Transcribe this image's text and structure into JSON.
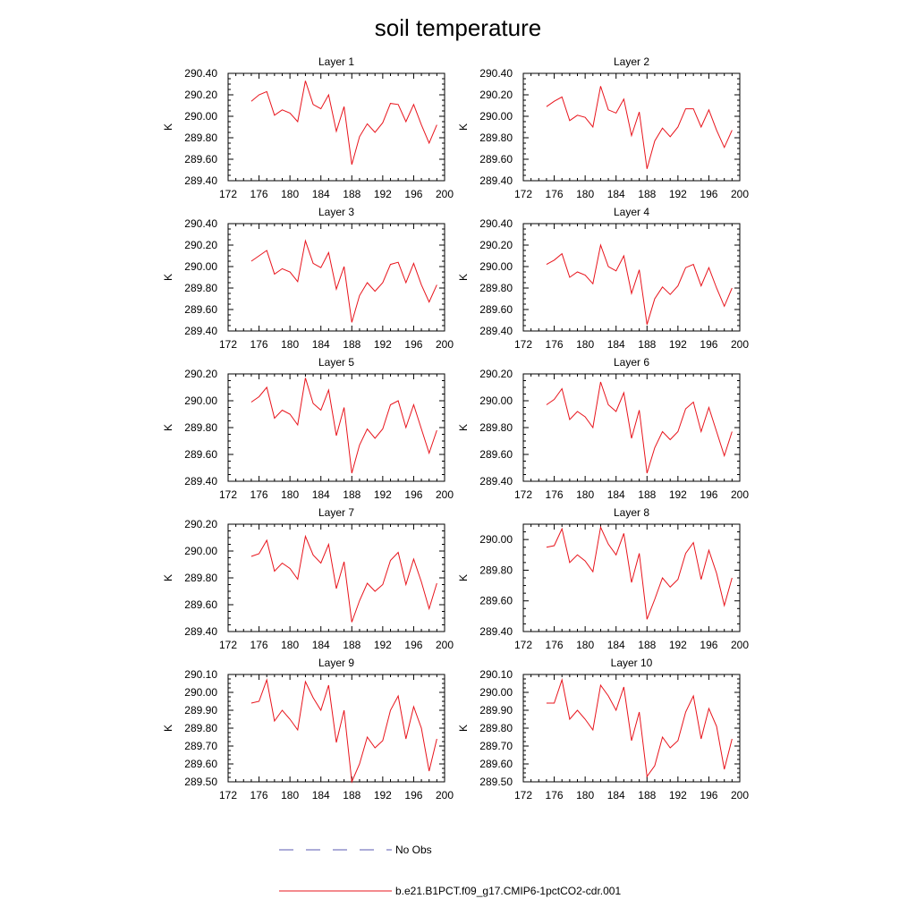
{
  "figure_title": "soil temperature",
  "chart_data": [
    {
      "type": "line",
      "title": "Layer 1",
      "ylabel": "K",
      "xlim": [
        172,
        200
      ],
      "xticks": [
        172,
        176,
        180,
        184,
        188,
        192,
        196,
        200
      ],
      "ylim": [
        289.4,
        290.4
      ],
      "yticks": [
        "289.40",
        "289.60",
        "289.80",
        "290.00",
        "290.20",
        "290.40"
      ],
      "series": [
        {
          "name": "b.e21.B1PCT.f09_g17.CMIP6-1pctCO2-cdr.001",
          "color": "#e8141c",
          "x": [
            175,
            176,
            177,
            178,
            179,
            180,
            181,
            182,
            183,
            184,
            185,
            186,
            187,
            188,
            189,
            190,
            191,
            192,
            193,
            194,
            195,
            196,
            197,
            198,
            199
          ],
          "values": [
            290.14,
            290.2,
            290.23,
            290.01,
            290.06,
            290.03,
            289.95,
            290.33,
            290.11,
            290.07,
            290.2,
            289.86,
            290.09,
            289.55,
            289.81,
            289.93,
            289.85,
            289.94,
            290.12,
            290.11,
            289.95,
            290.11,
            289.92,
            289.75,
            289.92
          ]
        }
      ]
    },
    {
      "type": "line",
      "title": "Layer 2",
      "ylabel": "K",
      "xlim": [
        172,
        200
      ],
      "xticks": [
        172,
        176,
        180,
        184,
        188,
        192,
        196,
        200
      ],
      "ylim": [
        289.4,
        290.4
      ],
      "yticks": [
        "289.40",
        "289.60",
        "289.80",
        "290.00",
        "290.20",
        "290.40"
      ],
      "series": [
        {
          "name": "b.e21.B1PCT.f09_g17.CMIP6-1pctCO2-cdr.001",
          "color": "#e8141c",
          "x": [
            175,
            176,
            177,
            178,
            179,
            180,
            181,
            182,
            183,
            184,
            185,
            186,
            187,
            188,
            189,
            190,
            191,
            192,
            193,
            194,
            195,
            196,
            197,
            198,
            199
          ],
          "values": [
            290.09,
            290.14,
            290.18,
            289.96,
            290.01,
            289.99,
            289.9,
            290.28,
            290.06,
            290.03,
            290.16,
            289.82,
            290.04,
            289.51,
            289.77,
            289.89,
            289.81,
            289.9,
            290.07,
            290.07,
            289.9,
            290.06,
            289.87,
            289.71,
            289.87
          ]
        }
      ]
    },
    {
      "type": "line",
      "title": "Layer 3",
      "ylabel": "K",
      "xlim": [
        172,
        200
      ],
      "xticks": [
        172,
        176,
        180,
        184,
        188,
        192,
        196,
        200
      ],
      "ylim": [
        289.4,
        290.4
      ],
      "yticks": [
        "289.40",
        "289.60",
        "289.80",
        "290.00",
        "290.20",
        "290.40"
      ],
      "series": [
        {
          "name": "b.e21.B1PCT.f09_g17.CMIP6-1pctCO2-cdr.001",
          "color": "#e8141c",
          "x": [
            175,
            176,
            177,
            178,
            179,
            180,
            181,
            182,
            183,
            184,
            185,
            186,
            187,
            188,
            189,
            190,
            191,
            192,
            193,
            194,
            195,
            196,
            197,
            198,
            199
          ],
          "values": [
            290.05,
            290.1,
            290.15,
            289.93,
            289.98,
            289.95,
            289.86,
            290.24,
            290.03,
            289.99,
            290.13,
            289.79,
            290.0,
            289.48,
            289.73,
            289.85,
            289.77,
            289.85,
            290.02,
            290.04,
            289.85,
            290.03,
            289.83,
            289.67,
            289.83
          ]
        }
      ]
    },
    {
      "type": "line",
      "title": "Layer 4",
      "ylabel": "K",
      "xlim": [
        172,
        200
      ],
      "xticks": [
        172,
        176,
        180,
        184,
        188,
        192,
        196,
        200
      ],
      "ylim": [
        289.4,
        290.4
      ],
      "yticks": [
        "289.40",
        "289.60",
        "289.80",
        "290.00",
        "290.20",
        "290.40"
      ],
      "series": [
        {
          "name": "b.e21.B1PCT.f09_g17.CMIP6-1pctCO2-cdr.001",
          "color": "#e8141c",
          "x": [
            175,
            176,
            177,
            178,
            179,
            180,
            181,
            182,
            183,
            184,
            185,
            186,
            187,
            188,
            189,
            190,
            191,
            192,
            193,
            194,
            195,
            196,
            197,
            198,
            199
          ],
          "values": [
            290.02,
            290.06,
            290.12,
            289.9,
            289.95,
            289.92,
            289.84,
            290.2,
            290.0,
            289.96,
            290.1,
            289.75,
            289.97,
            289.46,
            289.7,
            289.81,
            289.74,
            289.82,
            289.99,
            290.02,
            289.82,
            289.99,
            289.8,
            289.63,
            289.8
          ]
        }
      ]
    },
    {
      "type": "line",
      "title": "Layer 5",
      "ylabel": "K",
      "xlim": [
        172,
        200
      ],
      "xticks": [
        172,
        176,
        180,
        184,
        188,
        192,
        196,
        200
      ],
      "ylim": [
        289.4,
        290.2
      ],
      "yticks": [
        "289.40",
        "289.60",
        "289.80",
        "290.00",
        "290.20"
      ],
      "series": [
        {
          "name": "b.e21.B1PCT.f09_g17.CMIP6-1pctCO2-cdr.001",
          "color": "#e8141c",
          "x": [
            175,
            176,
            177,
            178,
            179,
            180,
            181,
            182,
            183,
            184,
            185,
            186,
            187,
            188,
            189,
            190,
            191,
            192,
            193,
            194,
            195,
            196,
            197,
            198,
            199
          ],
          "values": [
            289.99,
            290.03,
            290.1,
            289.87,
            289.93,
            289.9,
            289.82,
            290.17,
            289.98,
            289.93,
            290.08,
            289.74,
            289.95,
            289.46,
            289.67,
            289.79,
            289.72,
            289.79,
            289.97,
            290.0,
            289.8,
            289.97,
            289.79,
            289.61,
            289.78
          ]
        }
      ]
    },
    {
      "type": "line",
      "title": "Layer 6",
      "ylabel": "K",
      "xlim": [
        172,
        200
      ],
      "xticks": [
        172,
        176,
        180,
        184,
        188,
        192,
        196,
        200
      ],
      "ylim": [
        289.4,
        290.2
      ],
      "yticks": [
        "289.40",
        "289.60",
        "289.80",
        "290.00",
        "290.20"
      ],
      "series": [
        {
          "name": "b.e21.B1PCT.f09_g17.CMIP6-1pctCO2-cdr.001",
          "color": "#e8141c",
          "x": [
            175,
            176,
            177,
            178,
            179,
            180,
            181,
            182,
            183,
            184,
            185,
            186,
            187,
            188,
            189,
            190,
            191,
            192,
            193,
            194,
            195,
            196,
            197,
            198,
            199
          ],
          "values": [
            289.97,
            290.01,
            290.09,
            289.86,
            289.92,
            289.88,
            289.8,
            290.14,
            289.97,
            289.92,
            290.06,
            289.72,
            289.93,
            289.46,
            289.65,
            289.77,
            289.71,
            289.77,
            289.94,
            289.99,
            289.77,
            289.95,
            289.77,
            289.59,
            289.77
          ]
        }
      ]
    },
    {
      "type": "line",
      "title": "Layer 7",
      "ylabel": "K",
      "xlim": [
        172,
        200
      ],
      "xticks": [
        172,
        176,
        180,
        184,
        188,
        192,
        196,
        200
      ],
      "ylim": [
        289.4,
        290.2
      ],
      "yticks": [
        "289.40",
        "289.60",
        "289.80",
        "290.00",
        "290.20"
      ],
      "series": [
        {
          "name": "b.e21.B1PCT.f09_g17.CMIP6-1pctCO2-cdr.001",
          "color": "#e8141c",
          "x": [
            175,
            176,
            177,
            178,
            179,
            180,
            181,
            182,
            183,
            184,
            185,
            186,
            187,
            188,
            189,
            190,
            191,
            192,
            193,
            194,
            195,
            196,
            197,
            198,
            199
          ],
          "values": [
            289.96,
            289.98,
            290.08,
            289.85,
            289.91,
            289.87,
            289.79,
            290.11,
            289.97,
            289.91,
            290.05,
            289.72,
            289.92,
            289.47,
            289.63,
            289.76,
            289.7,
            289.75,
            289.93,
            289.99,
            289.75,
            289.94,
            289.77,
            289.57,
            289.76
          ]
        }
      ]
    },
    {
      "type": "line",
      "title": "Layer 8",
      "ylabel": "K",
      "xlim": [
        172,
        200
      ],
      "xticks": [
        172,
        176,
        180,
        184,
        188,
        192,
        196,
        200
      ],
      "ylim": [
        289.4,
        290.1
      ],
      "yticks": [
        "289.40",
        "289.60",
        "289.80",
        "290.00"
      ],
      "series": [
        {
          "name": "b.e21.B1PCT.f09_g17.CMIP6-1pctCO2-cdr.001",
          "color": "#e8141c",
          "x": [
            175,
            176,
            177,
            178,
            179,
            180,
            181,
            182,
            183,
            184,
            185,
            186,
            187,
            188,
            189,
            190,
            191,
            192,
            193,
            194,
            195,
            196,
            197,
            198,
            199
          ],
          "values": [
            289.95,
            289.96,
            290.07,
            289.85,
            289.9,
            289.86,
            289.79,
            290.08,
            289.97,
            289.9,
            290.04,
            289.72,
            289.91,
            289.48,
            289.61,
            289.75,
            289.69,
            289.74,
            289.91,
            289.98,
            289.74,
            289.93,
            289.78,
            289.57,
            289.75
          ]
        }
      ]
    },
    {
      "type": "line",
      "title": "Layer 9",
      "ylabel": "K",
      "xlim": [
        172,
        200
      ],
      "xticks": [
        172,
        176,
        180,
        184,
        188,
        192,
        196,
        200
      ],
      "ylim": [
        289.5,
        290.1
      ],
      "yticks": [
        "289.50",
        "289.60",
        "289.70",
        "289.80",
        "289.90",
        "290.00",
        "290.10"
      ],
      "series": [
        {
          "name": "b.e21.B1PCT.f09_g17.CMIP6-1pctCO2-cdr.001",
          "color": "#e8141c",
          "x": [
            175,
            176,
            177,
            178,
            179,
            180,
            181,
            182,
            183,
            184,
            185,
            186,
            187,
            188,
            189,
            190,
            191,
            192,
            193,
            194,
            195,
            196,
            197,
            198,
            199
          ],
          "values": [
            289.94,
            289.95,
            290.07,
            289.84,
            289.9,
            289.85,
            289.79,
            290.06,
            289.97,
            289.9,
            290.04,
            289.72,
            289.9,
            289.5,
            289.6,
            289.75,
            289.69,
            289.73,
            289.9,
            289.98,
            289.74,
            289.92,
            289.8,
            289.56,
            289.74
          ]
        }
      ]
    },
    {
      "type": "line",
      "title": "Layer 10",
      "ylabel": "K",
      "xlim": [
        172,
        200
      ],
      "xticks": [
        172,
        176,
        180,
        184,
        188,
        192,
        196,
        200
      ],
      "ylim": [
        289.5,
        290.1
      ],
      "yticks": [
        "289.50",
        "289.60",
        "289.70",
        "289.80",
        "289.90",
        "290.00",
        "290.10"
      ],
      "series": [
        {
          "name": "b.e21.B1PCT.f09_g17.CMIP6-1pctCO2-cdr.001",
          "color": "#e8141c",
          "x": [
            175,
            176,
            177,
            178,
            179,
            180,
            181,
            182,
            183,
            184,
            185,
            186,
            187,
            188,
            189,
            190,
            191,
            192,
            193,
            194,
            195,
            196,
            197,
            198,
            199
          ],
          "values": [
            289.94,
            289.94,
            290.07,
            289.85,
            289.9,
            289.85,
            289.79,
            290.04,
            289.98,
            289.9,
            290.03,
            289.73,
            289.89,
            289.53,
            289.59,
            289.75,
            289.69,
            289.73,
            289.89,
            289.98,
            289.74,
            289.91,
            289.81,
            289.57,
            289.74
          ]
        }
      ]
    }
  ],
  "legend": [
    {
      "label": "No Obs",
      "style": "dashed",
      "color": "#5a5ab0"
    },
    {
      "label": "b.e21.B1PCT.f09_g17.CMIP6-1pctCO2-cdr.001",
      "style": "solid",
      "color": "#e8141c"
    }
  ]
}
